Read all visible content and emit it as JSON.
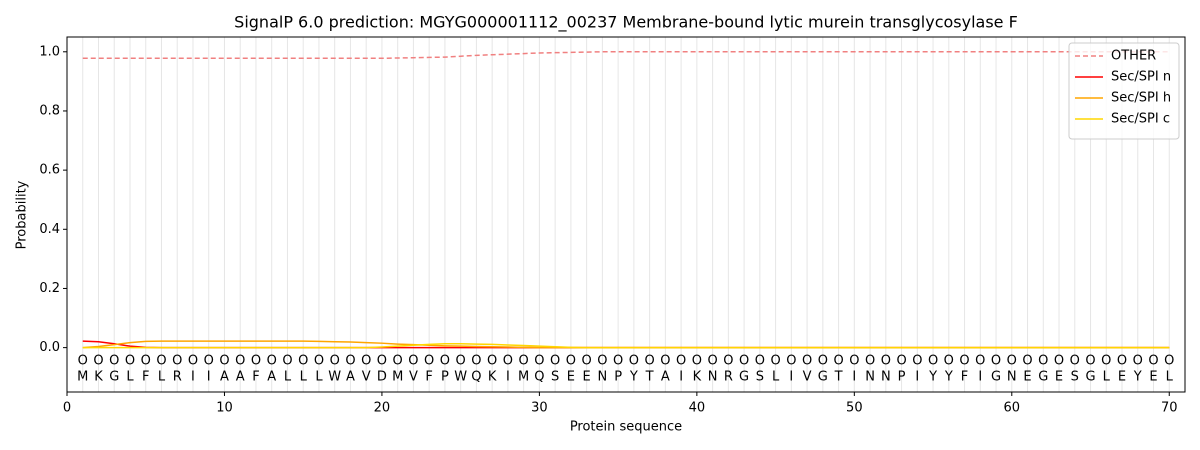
{
  "chart_data": {
    "type": "line",
    "title": "SignalP 6.0 prediction: MGYG000001112_00237 Membrane-bound lytic murein transglycosylase F",
    "x_label": "Protein sequence",
    "y_label": "Probability",
    "x": [
      1,
      2,
      3,
      4,
      5,
      6,
      7,
      8,
      9,
      10,
      11,
      12,
      13,
      14,
      15,
      16,
      17,
      18,
      19,
      20,
      21,
      22,
      23,
      24,
      25,
      26,
      27,
      28,
      29,
      30,
      31,
      32,
      33,
      34,
      35,
      36,
      37,
      38,
      39,
      40,
      41,
      42,
      43,
      44,
      45,
      46,
      47,
      48,
      49,
      50,
      51,
      52,
      53,
      54,
      55,
      56,
      57,
      58,
      59,
      60,
      61,
      62,
      63,
      64,
      65,
      66,
      67,
      68,
      69,
      70
    ],
    "sequence": [
      "M",
      "K",
      "G",
      "L",
      "F",
      "L",
      "R",
      "I",
      "I",
      "A",
      "A",
      "F",
      "A",
      "L",
      "L",
      "L",
      "W",
      "A",
      "V",
      "D",
      "M",
      "V",
      "F",
      "P",
      "W",
      "Q",
      "K",
      "I",
      "M",
      "Q",
      "S",
      "E",
      "E",
      "N",
      "P",
      "Y",
      "T",
      "A",
      "I",
      "K",
      "N",
      "R",
      "G",
      "S",
      "L",
      "I",
      "V",
      "G",
      "T",
      "I",
      "N",
      "N",
      "P",
      "I",
      "Y",
      "Y",
      "F",
      "I",
      "G",
      "N",
      "E",
      "G",
      "E",
      "S",
      "G",
      "L",
      "E",
      "Y",
      "E",
      "L"
    ],
    "predicted_labels": [
      "O",
      "O",
      "O",
      "O",
      "O",
      "O",
      "O",
      "O",
      "O",
      "O",
      "O",
      "O",
      "O",
      "O",
      "O",
      "O",
      "O",
      "O",
      "O",
      "O",
      "O",
      "O",
      "O",
      "O",
      "O",
      "O",
      "O",
      "O",
      "O",
      "O",
      "O",
      "O",
      "O",
      "O",
      "O",
      "O",
      "O",
      "O",
      "O",
      "O",
      "O",
      "O",
      "O",
      "O",
      "O",
      "O",
      "O",
      "O",
      "O",
      "O",
      "O",
      "O",
      "O",
      "O",
      "O",
      "O",
      "O",
      "O",
      "O",
      "O",
      "O",
      "O",
      "O",
      "O",
      "O",
      "O",
      "O",
      "O",
      "O",
      "O"
    ],
    "series": [
      {
        "name": "OTHER",
        "color": "#f08080",
        "dashed": true,
        "values": [
          0.978,
          0.978,
          0.978,
          0.978,
          0.978,
          0.978,
          0.978,
          0.978,
          0.978,
          0.978,
          0.978,
          0.978,
          0.978,
          0.978,
          0.978,
          0.978,
          0.978,
          0.978,
          0.978,
          0.978,
          0.979,
          0.98,
          0.981,
          0.982,
          0.985,
          0.988,
          0.99,
          0.992,
          0.994,
          0.996,
          0.997,
          0.998,
          0.999,
          1,
          1,
          1,
          1,
          1,
          1,
          1,
          1,
          1,
          1,
          1,
          1,
          1,
          1,
          1,
          1,
          1,
          1,
          1,
          1,
          1,
          1,
          1,
          1,
          1,
          1,
          1,
          1,
          1,
          1,
          1,
          1,
          1,
          1,
          1,
          1,
          1
        ]
      },
      {
        "name": "Sec/SPI n",
        "color": "#ff0000",
        "dashed": false,
        "values": [
          0.022,
          0.02,
          0.013,
          0.005,
          0.001,
          0,
          0,
          0,
          0,
          0,
          0,
          0,
          0,
          0,
          0,
          0,
          0,
          0,
          0,
          0,
          0,
          0,
          0,
          0,
          0,
          0,
          0,
          0,
          0,
          0,
          0,
          0,
          0,
          0,
          0,
          0,
          0,
          0,
          0,
          0,
          0,
          0,
          0,
          0,
          0,
          0,
          0,
          0,
          0,
          0,
          0,
          0,
          0,
          0,
          0,
          0,
          0,
          0,
          0,
          0,
          0,
          0,
          0,
          0,
          0,
          0,
          0,
          0,
          0,
          0
        ]
      },
      {
        "name": "Sec/SPI h",
        "color": "#ffa500",
        "dashed": false,
        "values": [
          0,
          0.004,
          0.01,
          0.017,
          0.021,
          0.022,
          0.022,
          0.022,
          0.022,
          0.022,
          0.022,
          0.022,
          0.022,
          0.022,
          0.022,
          0.021,
          0.02,
          0.019,
          0.017,
          0.015,
          0.012,
          0.01,
          0.008,
          0.006,
          0.005,
          0.004,
          0.003,
          0.002,
          0.001,
          0,
          0,
          0,
          0,
          0,
          0,
          0,
          0,
          0,
          0,
          0,
          0,
          0,
          0,
          0,
          0,
          0,
          0,
          0,
          0,
          0,
          0,
          0,
          0,
          0,
          0,
          0,
          0,
          0,
          0,
          0,
          0,
          0,
          0,
          0,
          0,
          0,
          0,
          0,
          0,
          0
        ]
      },
      {
        "name": "Sec/SPI c",
        "color": "#ffd700",
        "dashed": false,
        "values": [
          0,
          0,
          0,
          0,
          0,
          0,
          0,
          0,
          0,
          0,
          0,
          0,
          0,
          0,
          0,
          0,
          0,
          0,
          0,
          0.002,
          0.005,
          0.008,
          0.011,
          0.013,
          0.013,
          0.012,
          0.011,
          0.009,
          0.007,
          0.005,
          0.003,
          0.001,
          0,
          0,
          0,
          0,
          0,
          0,
          0,
          0,
          0,
          0,
          0,
          0,
          0,
          0,
          0,
          0,
          0,
          0,
          0,
          0,
          0,
          0,
          0,
          0,
          0,
          0,
          0,
          0,
          0,
          0,
          0,
          0,
          0,
          0,
          0,
          0,
          0,
          0
        ]
      }
    ],
    "xlim": [
      0,
      71
    ],
    "ylim": [
      -0.15,
      1.05
    ],
    "xticks": [
      0,
      10,
      20,
      30,
      40,
      50,
      60,
      70
    ],
    "yticks": [
      {
        "value": 0,
        "label": "0.0"
      },
      0.2,
      0.4,
      0.6,
      0.8,
      {
        "value": 1,
        "label": "1.0"
      }
    ],
    "position_grid": true,
    "legend": "upper right"
  }
}
